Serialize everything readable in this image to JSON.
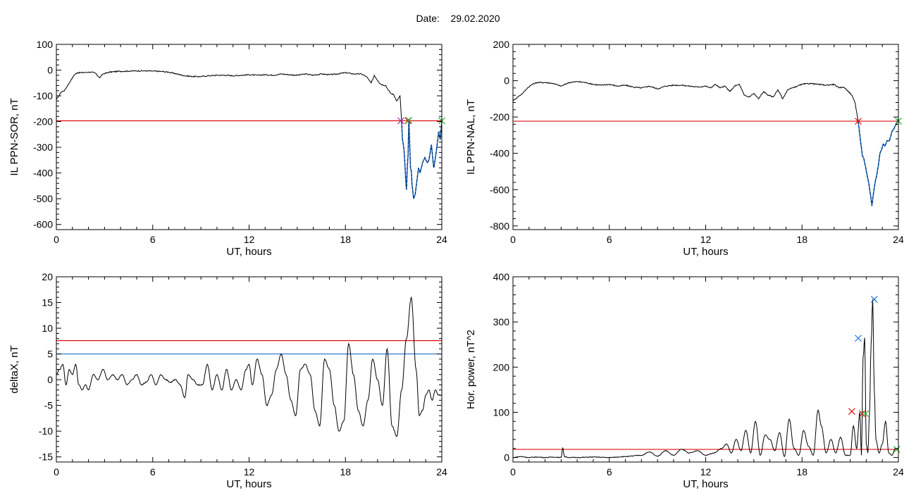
{
  "header": {
    "date_label": "Date:",
    "date_value": "29.02.2020"
  },
  "colors": {
    "trace": "#000000",
    "threshold_red": "#e01010",
    "threshold_blue": "#1e6fd0",
    "marker_red": "#e01010",
    "marker_green": "#22aa22",
    "marker_blue": "#1e6fd0",
    "marker_purple": "#a020a0"
  },
  "chart_data": [
    {
      "type": "line",
      "xlabel": "UT, hours",
      "ylabel": "IL PPN-SOR, nT",
      "xlim": [
        0,
        24
      ],
      "ylim": [
        -620,
        100
      ],
      "xticks": [
        0,
        6,
        12,
        18,
        24
      ],
      "yticks": [
        100,
        0,
        -100,
        -200,
        -300,
        -400,
        -500,
        -600
      ],
      "grid": false,
      "series": [
        {
          "color": "#000000",
          "x": [
            0,
            0.15,
            0.3,
            0.5,
            0.7,
            0.9,
            1.1,
            1.3,
            1.6,
            2,
            2.4,
            2.7,
            2.9,
            3.3,
            3.8,
            4.5,
            5,
            5.5,
            6,
            6.5,
            7,
            7.5,
            8,
            8.5,
            9,
            9.5,
            10,
            10.5,
            11,
            11.5,
            12,
            12.5,
            13,
            13.5,
            14,
            14.5,
            15,
            15.5,
            16,
            16.5,
            17,
            17.5,
            18,
            18.5,
            19,
            19.3,
            19.6,
            19.8,
            20,
            20.2,
            20.5,
            20.8,
            21,
            21.2,
            21.4,
            21.5
          ],
          "y": [
            -115,
            -100,
            -85,
            -80,
            -60,
            -40,
            -20,
            -10,
            -10,
            -8,
            -10,
            -30,
            -15,
            -8,
            -5,
            -4,
            -3,
            -3,
            -4,
            -5,
            -8,
            -15,
            -22,
            -25,
            -25,
            -22,
            -20,
            -20,
            -22,
            -20,
            -18,
            -20,
            -18,
            -20,
            -15,
            -18,
            -20,
            -15,
            -20,
            -15,
            -18,
            -15,
            -10,
            -15,
            -15,
            -25,
            -50,
            -20,
            -40,
            -55,
            -60,
            -90,
            -95,
            -120,
            -100,
            -200
          ]
        },
        {
          "color": "#1e6fd0",
          "x": [
            21.5,
            21.55,
            21.65,
            21.75,
            21.8,
            21.85,
            21.9,
            21.95,
            22.05,
            22.1,
            22.15,
            22.25,
            22.35,
            22.45,
            22.55,
            22.65,
            22.8,
            22.95,
            23.1,
            23.2,
            23.35,
            23.5,
            23.65,
            23.8,
            23.9,
            24
          ],
          "y": [
            -200,
            -270,
            -310,
            -420,
            -465,
            -380,
            -330,
            -190,
            -380,
            -390,
            -450,
            -500,
            -480,
            -430,
            -380,
            -400,
            -360,
            -340,
            -360,
            -350,
            -290,
            -380,
            -320,
            -240,
            -270,
            -200
          ]
        }
      ],
      "thresholds": [
        {
          "y": -197,
          "color": "#e01010"
        }
      ],
      "markers": [
        {
          "x": 21.45,
          "y": -197,
          "color": "#a020a0"
        },
        {
          "x": 21.9,
          "y": -197,
          "color": "#e01010"
        },
        {
          "x": 21.95,
          "y": -195,
          "color": "#22aa22"
        },
        {
          "x": 24.0,
          "y": -197,
          "color": "#22aa22"
        }
      ]
    },
    {
      "type": "line",
      "xlabel": "UT, hours",
      "ylabel": "IL PPN-NAL, nT",
      "xlim": [
        0,
        24
      ],
      "ylim": [
        -820,
        200
      ],
      "xticks": [
        0,
        6,
        12,
        18,
        24
      ],
      "yticks": [
        200,
        0,
        -200,
        -400,
        -600,
        -800
      ],
      "grid": false,
      "series": [
        {
          "color": "#000000",
          "x": [
            0,
            0.3,
            0.6,
            0.9,
            1.2,
            1.5,
            2,
            2.5,
            3,
            3.5,
            4,
            4.5,
            5,
            5.5,
            6,
            6.5,
            7,
            7.5,
            8,
            8.5,
            9,
            9.5,
            10,
            10.5,
            11,
            11.5,
            12,
            12.3,
            12.6,
            12.9,
            13.2,
            13.5,
            13.8,
            14.1,
            14.4,
            14.7,
            15,
            15.3,
            15.6,
            15.9,
            16.2,
            16.5,
            16.8,
            17.1,
            17.4,
            17.7,
            18,
            18.5,
            19,
            19.5,
            20,
            20.3,
            20.6,
            20.9,
            21.1,
            21.3,
            21.5
          ],
          "y": [
            -110,
            -90,
            -70,
            -40,
            -20,
            -10,
            -10,
            -15,
            -30,
            -10,
            -5,
            -10,
            -20,
            -25,
            -20,
            -30,
            -25,
            -35,
            -40,
            -30,
            -45,
            -30,
            -25,
            -25,
            -30,
            -35,
            -30,
            -40,
            -20,
            -40,
            -30,
            -60,
            -30,
            -20,
            -80,
            -90,
            -70,
            -100,
            -60,
            -80,
            -90,
            -50,
            -100,
            -50,
            -40,
            -30,
            -20,
            -15,
            -20,
            -25,
            -20,
            -40,
            -35,
            -60,
            -80,
            -120,
            -225
          ]
        },
        {
          "color": "#1e6fd0",
          "x": [
            21.5,
            21.6,
            21.75,
            21.85,
            21.95,
            22.05,
            22.15,
            22.25,
            22.35,
            22.45,
            22.55,
            22.65,
            22.75,
            22.85,
            22.95,
            23.05,
            23.15,
            23.3,
            23.45,
            23.6,
            23.75,
            23.9,
            24
          ],
          "y": [
            -225,
            -300,
            -410,
            -430,
            -470,
            -520,
            -560,
            -620,
            -690,
            -620,
            -560,
            -520,
            -470,
            -400,
            -380,
            -350,
            -360,
            -330,
            -330,
            -280,
            -260,
            -230,
            -210
          ]
        }
      ],
      "thresholds": [
        {
          "y": -223,
          "color": "#e01010"
        }
      ],
      "markers": [
        {
          "x": 21.5,
          "y": -223,
          "color": "#e01010"
        },
        {
          "x": 24.0,
          "y": -223,
          "color": "#22aa22"
        }
      ]
    },
    {
      "type": "line",
      "xlabel": "UT, hours",
      "ylabel": "deltaX, nT",
      "xlim": [
        0,
        24
      ],
      "ylim": [
        -16,
        20
      ],
      "xticks": [
        0,
        6,
        12,
        18,
        24
      ],
      "yticks": [
        20,
        15,
        10,
        5,
        0,
        -5,
        -10,
        -15
      ],
      "grid": false,
      "series": [
        {
          "color": "#000000",
          "x": [
            0,
            0.2,
            0.4,
            0.6,
            0.8,
            1,
            1.2,
            1.4,
            1.6,
            1.8,
            2,
            2.3,
            2.6,
            2.9,
            3.2,
            3.5,
            3.8,
            4.1,
            4.4,
            4.7,
            5,
            5.3,
            5.6,
            5.9,
            6.2,
            6.5,
            6.8,
            7.1,
            7.4,
            7.7,
            8,
            8.2,
            8.5,
            8.8,
            9.1,
            9.4,
            9.7,
            10,
            10.3,
            10.6,
            10.9,
            11.2,
            11.5,
            11.8,
            12,
            12.2,
            12.5,
            12.8,
            13.1,
            13.4,
            13.7,
            14,
            14.3,
            14.6,
            14.9,
            15.2,
            15.5,
            15.8,
            16.1,
            16.4,
            16.7,
            17,
            17.3,
            17.6,
            17.9,
            18.2,
            18.5,
            18.8,
            19.1,
            19.4,
            19.7,
            20,
            20.3,
            20.6,
            20.9,
            21.2,
            21.5,
            21.8,
            22.1,
            22.4,
            22.6,
            22.8,
            23,
            23.2,
            23.4,
            23.6,
            23.8,
            24
          ],
          "y": [
            1,
            2,
            3,
            -1,
            2,
            1,
            3,
            -1,
            -2,
            -1,
            -2,
            1,
            0,
            2,
            0,
            1,
            0,
            1,
            -1,
            0,
            1,
            -1,
            -0.5,
            1,
            -1,
            1,
            0,
            -0.5,
            0,
            -1,
            -3.5,
            1,
            0,
            -1,
            -1,
            3,
            -2,
            1,
            -2,
            2,
            -2,
            0,
            -2,
            2,
            3,
            -1,
            4,
            1,
            -5,
            -3,
            2,
            5,
            1,
            -4,
            -7,
            2,
            3,
            1,
            -6,
            -9,
            4,
            2,
            -5,
            -10,
            -8,
            7,
            1,
            -6,
            -9,
            -4,
            4,
            0,
            -5,
            6,
            -9,
            -11,
            -2,
            8,
            16,
            2,
            -7,
            -6,
            -3,
            -2,
            -4,
            -2,
            -3,
            -3
          ],
          "smooth": true
        }
      ],
      "thresholds": [
        {
          "y": 7.6,
          "color": "#e01010"
        },
        {
          "y": 5.0,
          "color": "#1e6fd0"
        }
      ],
      "markers": []
    },
    {
      "type": "line",
      "xlabel": "UT, hours",
      "ylabel": "Hor. power, nT^2",
      "xlim": [
        0,
        24
      ],
      "ylim": [
        -10,
        400
      ],
      "xticks": [
        0,
        6,
        12,
        18,
        24
      ],
      "yticks": [
        400,
        300,
        200,
        100,
        0
      ],
      "grid": false,
      "series": [
        {
          "color": "#000000",
          "x": [
            0,
            0.5,
            1,
            1.5,
            2,
            2.5,
            3,
            3.1,
            3.2,
            3.5,
            4,
            5,
            6,
            7,
            8,
            8.5,
            9,
            9.5,
            10,
            10.5,
            11,
            11.5,
            12,
            12.5,
            13,
            13.3,
            13.6,
            13.9,
            14.2,
            14.5,
            14.8,
            15.1,
            15.4,
            15.7,
            16,
            16.3,
            16.6,
            16.9,
            17.2,
            17.5,
            17.8,
            18.1,
            18.4,
            18.7,
            19,
            19.2,
            19.5,
            19.8,
            20.1,
            20.4,
            20.7,
            21,
            21.2,
            21.4,
            21.6,
            21.7,
            21.8,
            21.9,
            22,
            22.1,
            22.2,
            22.3,
            22.4,
            22.5,
            22.6,
            22.8,
            23,
            23.2,
            23.4,
            23.6,
            23.8,
            24
          ],
          "y": [
            0,
            2,
            0,
            1,
            0,
            1,
            0,
            22,
            2,
            0,
            0,
            1,
            0,
            2,
            5,
            12,
            3,
            15,
            5,
            18,
            10,
            15,
            5,
            10,
            20,
            30,
            10,
            40,
            15,
            60,
            10,
            80,
            5,
            50,
            40,
            15,
            55,
            2,
            85,
            20,
            5,
            60,
            25,
            5,
            105,
            70,
            10,
            40,
            10,
            45,
            5,
            5,
            70,
            20,
            100,
            5,
            220,
            265,
            30,
            10,
            95,
            250,
            350,
            150,
            40,
            10,
            30,
            80,
            10,
            5,
            20,
            15
          ],
          "smooth": true
        }
      ],
      "thresholds": [
        {
          "y": 18,
          "color": "#e01010"
        }
      ],
      "markers": [
        {
          "x": 21.1,
          "y": 102,
          "color": "#e01010"
        },
        {
          "x": 21.5,
          "y": 264,
          "color": "#1e6fd0"
        },
        {
          "x": 21.75,
          "y": 97,
          "color": "#e01010"
        },
        {
          "x": 21.95,
          "y": 97,
          "color": "#22aa22"
        },
        {
          "x": 22.5,
          "y": 350,
          "color": "#1e6fd0"
        },
        {
          "x": 23.9,
          "y": 18,
          "color": "#22aa22"
        }
      ]
    }
  ]
}
